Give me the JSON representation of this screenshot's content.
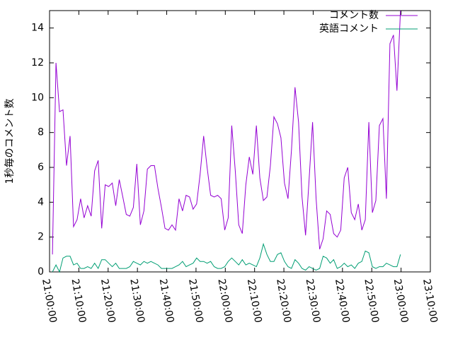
{
  "chart_data": {
    "type": "line",
    "ylabel": "1秒毎のコメント数",
    "legend": "top-right",
    "x": [
      "21:01:00",
      "21:02:12",
      "21:03:24",
      "21:04:36",
      "21:05:48",
      "21:07:00",
      "21:08:12",
      "21:09:24",
      "21:10:36",
      "21:11:48",
      "21:13:00",
      "21:14:12",
      "21:15:24",
      "21:16:36",
      "21:17:48",
      "21:19:00",
      "21:20:12",
      "21:21:24",
      "21:22:36",
      "21:23:48",
      "21:25:00",
      "21:26:12",
      "21:27:24",
      "21:28:36",
      "21:29:48",
      "21:31:00",
      "21:32:12",
      "21:33:24",
      "21:34:36",
      "21:35:48",
      "21:37:00",
      "21:38:12",
      "21:39:24",
      "21:40:36",
      "21:41:48",
      "21:43:00",
      "21:44:12",
      "21:45:24",
      "21:46:36",
      "21:47:48",
      "21:49:00",
      "21:50:12",
      "21:51:24",
      "21:52:36",
      "21:53:48",
      "21:55:00",
      "21:56:12",
      "21:57:24",
      "21:58:36",
      "21:59:48",
      "22:01:00",
      "22:02:12",
      "22:03:24",
      "22:04:36",
      "22:05:48",
      "22:07:00",
      "22:08:12",
      "22:09:24",
      "22:10:36",
      "22:11:48",
      "22:13:00",
      "22:14:12",
      "22:15:24",
      "22:16:36",
      "22:17:48",
      "22:19:00",
      "22:20:12",
      "22:21:24",
      "22:22:36",
      "22:23:48",
      "22:25:00",
      "22:26:12",
      "22:27:24",
      "22:28:36",
      "22:29:48",
      "22:31:00",
      "22:32:12",
      "22:33:24",
      "22:34:36",
      "22:35:48",
      "22:37:00",
      "22:38:12",
      "22:39:24",
      "22:40:36",
      "22:41:48",
      "22:43:00",
      "22:44:12",
      "22:45:24",
      "22:46:36",
      "22:47:48",
      "22:49:00",
      "22:50:12",
      "22:51:24",
      "22:52:36",
      "22:53:48",
      "22:55:00",
      "22:56:12",
      "22:57:24",
      "22:58:36",
      "22:59:48"
    ],
    "series": [
      {
        "name": "コメント数",
        "color": "#9400d3",
        "values": [
          1.0,
          12,
          9.2,
          9.3,
          6.1,
          7.8,
          2.6,
          3.0,
          4.2,
          3.1,
          3.8,
          3.2,
          5.8,
          6.4,
          2.5,
          5.0,
          4.9,
          5.1,
          3.8,
          5.3,
          4.3,
          3.3,
          3.2,
          3.7,
          6.2,
          2.7,
          3.5,
          5.9,
          6.1,
          6.1,
          4.8,
          3.7,
          2.5,
          2.4,
          2.7,
          2.4,
          4.2,
          3.5,
          4.4,
          4.3,
          3.6,
          3.9,
          5.6,
          7.8,
          6.0,
          4.4,
          4.3,
          4.4,
          4.2,
          2.4,
          3.1,
          8.4,
          5.8,
          2.7,
          2.2,
          5.0,
          6.6,
          5.6,
          8.4,
          5.4,
          4.1,
          4.3,
          6.1,
          8.9,
          8.5,
          7.7,
          5.1,
          4.2,
          7.0,
          10.6,
          8.6,
          4.3,
          2.1,
          5.3,
          8.6,
          4.2,
          1.3,
          1.9,
          3.5,
          3.3,
          2.2,
          2.0,
          2.4,
          5.4,
          6.0,
          3.4,
          3.0,
          3.9,
          2.4,
          3.0,
          8.6,
          3.4,
          4.1,
          8.4,
          8.8,
          4.2,
          13.1,
          13.6,
          10.4,
          15
        ]
      },
      {
        "name": "英語コメント",
        "color": "#009e73",
        "values": [
          0,
          0.4,
          0,
          0.8,
          0.9,
          0.9,
          0.4,
          0.5,
          0.2,
          0.2,
          0.3,
          0.2,
          0.5,
          0.2,
          0.7,
          0.7,
          0.5,
          0.3,
          0.5,
          0.2,
          0.2,
          0.2,
          0.3,
          0.6,
          0.5,
          0.4,
          0.6,
          0.5,
          0.6,
          0.5,
          0.4,
          0.2,
          0.2,
          0.2,
          0.2,
          0.3,
          0.4,
          0.6,
          0.3,
          0.4,
          0.5,
          0.8,
          0.6,
          0.6,
          0.5,
          0.6,
          0.3,
          0.2,
          0.2,
          0.3,
          0.6,
          0.8,
          0.6,
          0.4,
          0.7,
          0.4,
          0.5,
          0.4,
          0.3,
          0.8,
          1.6,
          1.0,
          0.6,
          0.6,
          1.0,
          1.1,
          0.6,
          0.3,
          0.2,
          0.7,
          0.5,
          0.2,
          0.1,
          0.3,
          0.2,
          0.1,
          0.2,
          0.9,
          0.8,
          0.5,
          0.7,
          0.2,
          0.3,
          0.5,
          0.3,
          0.4,
          0.2,
          0.5,
          0.6,
          1.2,
          1.1,
          0.3,
          0.2,
          0.3,
          0.3,
          0.5,
          0.4,
          0.3,
          0.3,
          1.0
        ]
      }
    ],
    "xlim": [
      "21:00:00",
      "23:10:00"
    ],
    "xticks": [
      "21:00:00",
      "21:10:00",
      "21:20:00",
      "21:30:00",
      "21:40:00",
      "21:50:00",
      "22:00:00",
      "22:10:00",
      "22:20:00",
      "22:30:00",
      "22:40:00",
      "22:50:00",
      "23:00:00",
      "23:10:00"
    ],
    "ylim": [
      0,
      15
    ],
    "yticks": [
      0,
      2,
      4,
      6,
      8,
      10,
      12,
      14
    ]
  }
}
